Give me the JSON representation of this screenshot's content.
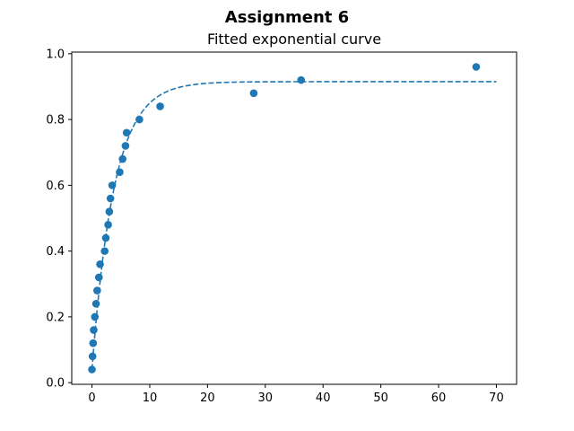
{
  "figure": {
    "suptitle": "Assignment 6"
  },
  "chart_data": {
    "type": "scatter",
    "title": "Fitted exponential curve",
    "xlabel": "",
    "ylabel": "",
    "xlim": [
      -3.5,
      73.5
    ],
    "ylim": [
      -0.005,
      1.005
    ],
    "xticks": [
      0,
      10,
      20,
      30,
      40,
      50,
      60,
      70
    ],
    "yticks": [
      0.0,
      0.2,
      0.4,
      0.6,
      0.8,
      1.0
    ],
    "grid": false,
    "colors": {
      "series": "#1f77b4"
    },
    "series": [
      {
        "kind": "points",
        "x": [
          0.0,
          0.1,
          0.2,
          0.3,
          0.5,
          0.7,
          0.9,
          1.2,
          1.4,
          2.2,
          2.4,
          2.8,
          3.0,
          3.2,
          3.5,
          4.8,
          5.3,
          5.8,
          6.0,
          8.2,
          11.8,
          28.0,
          36.2,
          66.5
        ],
        "y": [
          0.04,
          0.08,
          0.12,
          0.16,
          0.2,
          0.24,
          0.28,
          0.32,
          0.36,
          0.4,
          0.44,
          0.48,
          0.52,
          0.56,
          0.6,
          0.64,
          0.68,
          0.72,
          0.76,
          0.8,
          0.84,
          0.88,
          0.92,
          0.96
        ]
      },
      {
        "kind": "fitted-curve",
        "style": "dashed",
        "model": "a*(1-exp(-b*x))+c",
        "params": {
          "a": 0.875,
          "b": 0.26,
          "c": 0.04
        },
        "x_range": [
          0,
          70
        ]
      }
    ]
  }
}
